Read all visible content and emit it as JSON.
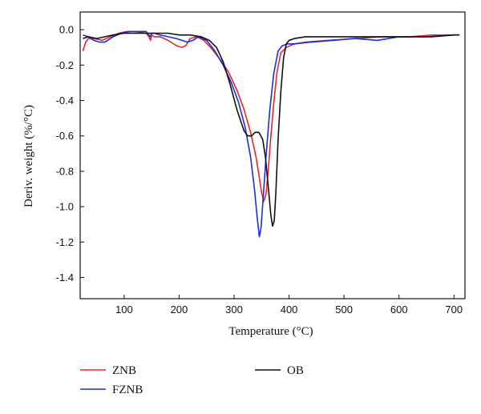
{
  "chart_data": {
    "type": "line",
    "title": "",
    "xlabel": "Temperature (°C)",
    "ylabel": "Deriv. weight (%/°C)",
    "xlim": [
      20,
      720
    ],
    "ylim": [
      -1.52,
      0.1
    ],
    "xticks": [
      100,
      200,
      300,
      400,
      500,
      600,
      700
    ],
    "yticks": [
      0.0,
      -0.2,
      -0.4,
      -0.6,
      -0.8,
      -1.0,
      -1.2,
      -1.4
    ],
    "ytick_labels": [
      "0.0",
      "-0.2",
      "-0.4",
      "-0.6",
      "-0.8",
      "-1.0",
      "-1.2",
      "-1.4"
    ],
    "grid": false,
    "legend_position": "below-plot",
    "series": [
      {
        "name": "ZNB",
        "color": "#e8262b",
        "x": [
          25,
          30,
          35,
          45,
          60,
          75,
          90,
          105,
          120,
          140,
          145,
          148,
          150,
          155,
          165,
          180,
          195,
          205,
          212,
          220,
          232,
          245,
          260,
          275,
          290,
          305,
          318,
          330,
          340,
          345,
          350,
          354,
          358,
          362,
          367,
          372,
          378,
          385,
          395,
          410,
          430,
          470,
          520,
          570,
          620,
          660,
          700,
          710
        ],
        "y": [
          -0.12,
          -0.07,
          -0.05,
          -0.05,
          -0.06,
          -0.04,
          -0.02,
          -0.01,
          -0.01,
          -0.02,
          -0.04,
          -0.06,
          -0.03,
          -0.04,
          -0.04,
          -0.06,
          -0.09,
          -0.1,
          -0.09,
          -0.05,
          -0.04,
          -0.06,
          -0.11,
          -0.17,
          -0.24,
          -0.34,
          -0.45,
          -0.58,
          -0.72,
          -0.82,
          -0.92,
          -0.97,
          -0.93,
          -0.8,
          -0.6,
          -0.42,
          -0.24,
          -0.13,
          -0.1,
          -0.08,
          -0.07,
          -0.06,
          -0.05,
          -0.04,
          -0.04,
          -0.03,
          -0.03,
          -0.03
        ]
      },
      {
        "name": "FZNB",
        "color": "#1a2fd4",
        "x": [
          25,
          35,
          45,
          55,
          65,
          80,
          95,
          110,
          125,
          140,
          145,
          148,
          150,
          155,
          165,
          180,
          195,
          205,
          215,
          225,
          235,
          250,
          265,
          280,
          295,
          308,
          320,
          330,
          337,
          342,
          346,
          349,
          353,
          358,
          365,
          372,
          380,
          388,
          398,
          410,
          440,
          480,
          520,
          560,
          600,
          650,
          700,
          710
        ],
        "y": [
          -0.03,
          -0.04,
          -0.06,
          -0.07,
          -0.07,
          -0.04,
          -0.02,
          -0.01,
          -0.01,
          -0.01,
          -0.03,
          -0.04,
          -0.02,
          -0.02,
          -0.03,
          -0.04,
          -0.05,
          -0.06,
          -0.07,
          -0.06,
          -0.04,
          -0.06,
          -0.12,
          -0.2,
          -0.3,
          -0.41,
          -0.55,
          -0.72,
          -0.9,
          -1.06,
          -1.17,
          -1.12,
          -0.95,
          -0.72,
          -0.45,
          -0.25,
          -0.12,
          -0.09,
          -0.08,
          -0.08,
          -0.07,
          -0.06,
          -0.05,
          -0.06,
          -0.04,
          -0.04,
          -0.03,
          -0.03
        ]
      },
      {
        "name": "OB",
        "color": "#111111",
        "x": [
          25,
          35,
          50,
          65,
          80,
          100,
          120,
          140,
          160,
          180,
          200,
          220,
          240,
          255,
          268,
          280,
          292,
          305,
          318,
          325,
          332,
          338,
          345,
          352,
          357,
          362,
          367,
          370,
          373,
          376,
          380,
          385,
          390,
          395,
          400,
          410,
          430,
          460,
          500,
          540,
          580,
          620,
          660,
          700,
          710
        ],
        "y": [
          -0.05,
          -0.04,
          -0.05,
          -0.04,
          -0.03,
          -0.02,
          -0.02,
          -0.02,
          -0.02,
          -0.02,
          -0.03,
          -0.03,
          -0.04,
          -0.06,
          -0.1,
          -0.18,
          -0.3,
          -0.45,
          -0.57,
          -0.6,
          -0.6,
          -0.58,
          -0.58,
          -0.62,
          -0.72,
          -0.88,
          -1.05,
          -1.11,
          -1.08,
          -0.92,
          -0.62,
          -0.35,
          -0.16,
          -0.08,
          -0.06,
          -0.05,
          -0.04,
          -0.04,
          -0.04,
          -0.04,
          -0.04,
          -0.04,
          -0.04,
          -0.03,
          -0.03
        ]
      }
    ]
  }
}
